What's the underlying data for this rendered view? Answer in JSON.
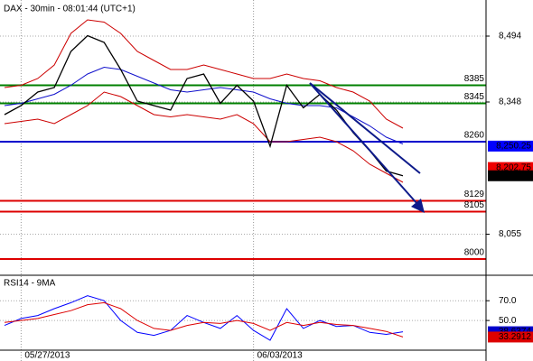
{
  "chart_data": [
    {
      "type": "line",
      "title": "DAX - 30min - 08:01:44 (UTC+1)",
      "categories": [
        null,
        "05/27/2013",
        null,
        null,
        null,
        null,
        null,
        null,
        null,
        null,
        null,
        null,
        null,
        null,
        null,
        "06/03/2013",
        null,
        null,
        null,
        null,
        null,
        null,
        null,
        null,
        null
      ],
      "series": [
        {
          "color": "#cc0000",
          "values": [
            8380,
            8385,
            8400,
            8430,
            8500,
            8530,
            8525,
            8500,
            8460,
            8440,
            8420,
            8420,
            8430,
            8420,
            8410,
            8400,
            8400,
            8410,
            8400,
            8395,
            8380,
            8370,
            8350,
            8310,
            8290
          ]
        },
        {
          "color": "#cc0000",
          "values": [
            8300,
            8305,
            8310,
            8300,
            8320,
            8340,
            8370,
            8360,
            8340,
            8320,
            8315,
            8320,
            8315,
            8310,
            8320,
            8300,
            8260,
            8260,
            8265,
            8270,
            8260,
            8240,
            8210,
            8190,
            8170
          ]
        },
        {
          "color": "#1010cc",
          "values": [
            8340,
            8345,
            8355,
            8365,
            8385,
            8410,
            8425,
            8420,
            8405,
            8390,
            8375,
            8370,
            8375,
            8380,
            8375,
            8370,
            8355,
            8345,
            8340,
            8340,
            8335,
            8315,
            8295,
            8270,
            8255
          ]
        },
        {
          "color": "#000000",
          "values": [
            8320,
            8340,
            8370,
            8380,
            8460,
            8495,
            8480,
            8420,
            8350,
            8340,
            8330,
            8400,
            8410,
            8345,
            8385,
            8350,
            8250,
            8385,
            8335,
            8365,
            8330,
            8280,
            8240,
            8195,
            8184.5
          ]
        }
      ],
      "ylim": [
        7964,
        8574
      ],
      "yticks": [
        {
          "value": 8494,
          "label": "8,494"
        },
        {
          "value": 8348,
          "label": "8,348"
        },
        {
          "value": 8055,
          "label": "8,055"
        }
      ],
      "grid": true,
      "levels": [
        {
          "value": 8385,
          "color": "#008000"
        },
        {
          "value": 8345,
          "color": "#008000"
        },
        {
          "value": 8260,
          "color": "#0000cc"
        },
        {
          "value": 8129,
          "color": "#dd0000"
        },
        {
          "value": 8105,
          "color": "#dd0000"
        },
        {
          "value": 8000,
          "color": "#dd0000"
        }
      ],
      "price_tags": [
        {
          "value": 8250.25,
          "label": "8,250.25",
          "color": "#0000ff"
        },
        {
          "value": 8202.75,
          "label": "8,202.75",
          "color": "#ee0000"
        },
        {
          "value": 8184.5,
          "label": "8,184.5",
          "color": "#000000"
        }
      ]
    },
    {
      "type": "line",
      "title": "RSI14 - 9MA",
      "series": [
        {
          "color": "#0000ff",
          "values": [
            45,
            52,
            55,
            62,
            68,
            75,
            70,
            50,
            38,
            35,
            40,
            55,
            48,
            42,
            55,
            40,
            30,
            62,
            42,
            50,
            44,
            45,
            38,
            36,
            38.6374
          ]
        },
        {
          "color": "#dd0000",
          "values": [
            48,
            50,
            52,
            56,
            60,
            66,
            68,
            62,
            50,
            42,
            40,
            45,
            48,
            47,
            50,
            47,
            40,
            48,
            45,
            48,
            46,
            45,
            42,
            39,
            33.2912
          ]
        }
      ],
      "ylim": [
        20,
        93
      ],
      "yticks": [
        {
          "value": 70,
          "label": "70.0"
        },
        {
          "value": 50,
          "label": "50.0"
        }
      ],
      "grid": true
    }
  ]
}
